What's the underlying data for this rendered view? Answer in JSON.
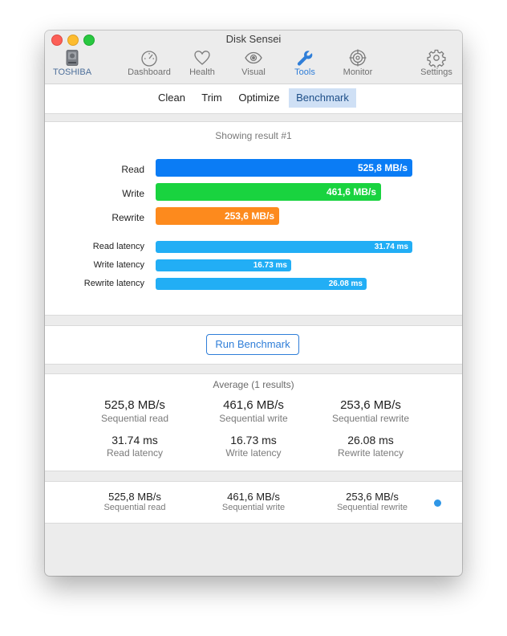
{
  "window": {
    "title": "Disk Sensei"
  },
  "toolbar": {
    "disk_label": "TOSHIBA",
    "items": [
      {
        "label": "Dashboard",
        "icon": "gauge-icon"
      },
      {
        "label": "Health",
        "icon": "heart-icon"
      },
      {
        "label": "Visual",
        "icon": "eye-icon"
      },
      {
        "label": "Tools",
        "icon": "wrench-icon",
        "active": true
      },
      {
        "label": "Monitor",
        "icon": "target-icon"
      },
      {
        "label": "Settings",
        "icon": "gear-icon"
      }
    ]
  },
  "subtabs": [
    {
      "label": "Clean"
    },
    {
      "label": "Trim"
    },
    {
      "label": "Optimize"
    },
    {
      "label": "Benchmark",
      "active": true
    }
  ],
  "result": {
    "title": "Showing result #1",
    "bars": [
      {
        "label": "Read",
        "value": "525,8 MB/s",
        "fraction": 1.0,
        "color": "#0a7cf5"
      },
      {
        "label": "Write",
        "value": "461,6 MB/s",
        "fraction": 0.878,
        "color": "#19d33f"
      },
      {
        "label": "Rewrite",
        "value": "253,6 MB/s",
        "fraction": 0.482,
        "color": "#fd8a1d"
      }
    ],
    "latency_bars": [
      {
        "label": "Read latency",
        "value": "31.74 ms",
        "fraction": 1.0,
        "color": "#22aef5"
      },
      {
        "label": "Write latency",
        "value": "16.73 ms",
        "fraction": 0.527,
        "color": "#22aef5"
      },
      {
        "label": "Rewrite latency",
        "value": "26.08 ms",
        "fraction": 0.822,
        "color": "#22aef5"
      }
    ]
  },
  "run_button": {
    "label": "Run Benchmark"
  },
  "average": {
    "title": "Average (1 results)",
    "stats": [
      {
        "value": "525,8 MB/s",
        "caption": "Sequential read"
      },
      {
        "value": "461,6 MB/s",
        "caption": "Sequential write"
      },
      {
        "value": "253,6 MB/s",
        "caption": "Sequential rewrite"
      },
      {
        "value": "31.74 ms",
        "caption": "Read latency"
      },
      {
        "value": "16.73 ms",
        "caption": "Write latency"
      },
      {
        "value": "26.08 ms",
        "caption": "Rewrite latency"
      }
    ]
  },
  "history": {
    "items": [
      {
        "value": "525,8 MB/s",
        "caption": "Sequential read"
      },
      {
        "value": "461,6 MB/s",
        "caption": "Sequential write"
      },
      {
        "value": "253,6 MB/s",
        "caption": "Sequential rewrite"
      }
    ],
    "dot_color": "#2f96e6"
  }
}
